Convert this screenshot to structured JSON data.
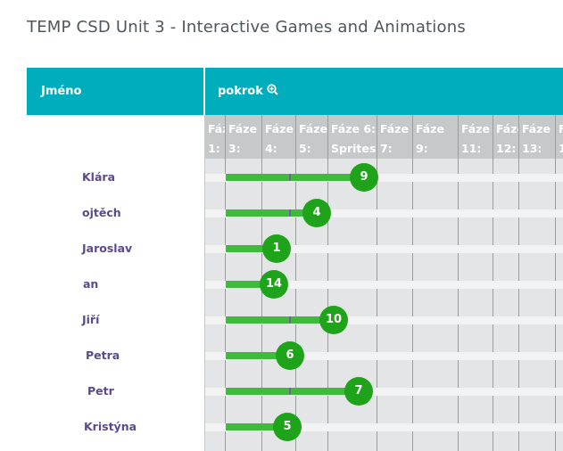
{
  "page": {
    "title": "TEMP CSD Unit 3 - Interactive Games and Animations"
  },
  "table": {
    "name_header": "Jméno",
    "progress_header": "pokrok",
    "stages": [
      {
        "line1": "Fáz",
        "line2": "1:"
      },
      {
        "line1": "Fáze",
        "line2": "3:"
      },
      {
        "line1": "Fáze",
        "line2": "4:"
      },
      {
        "line1": "Fáze",
        "line2": "5:"
      },
      {
        "line1": "Fáze 6:",
        "line2": "Sprites"
      },
      {
        "line1": "Fáze",
        "line2": "7:"
      },
      {
        "line1": "Fáze",
        "line2": "9:"
      },
      {
        "line1": "Fáze",
        "line2": "11:"
      },
      {
        "line1": "Fáze",
        "line2": "12:"
      },
      {
        "line1": "Fáze",
        "line2": "13:"
      },
      {
        "line1": "F",
        "line2": "1"
      }
    ],
    "students": [
      {
        "name": "Klára",
        "level": 9
      },
      {
        "name": "ojtěch",
        "level": 4
      },
      {
        "name": "Jaroslav",
        "level": 1
      },
      {
        "name": "an",
        "level": 14
      },
      {
        "name": "Jiří",
        "level": 10
      },
      {
        "name": "Petra",
        "level": 6
      },
      {
        "name": "Petr",
        "level": 7
      },
      {
        "name": "Kristýna",
        "level": 5
      }
    ]
  },
  "colors": {
    "header": "#00adbc",
    "bar": "#3fbb3b",
    "bubble": "#1ea31a",
    "name": "#5b4a8d"
  }
}
